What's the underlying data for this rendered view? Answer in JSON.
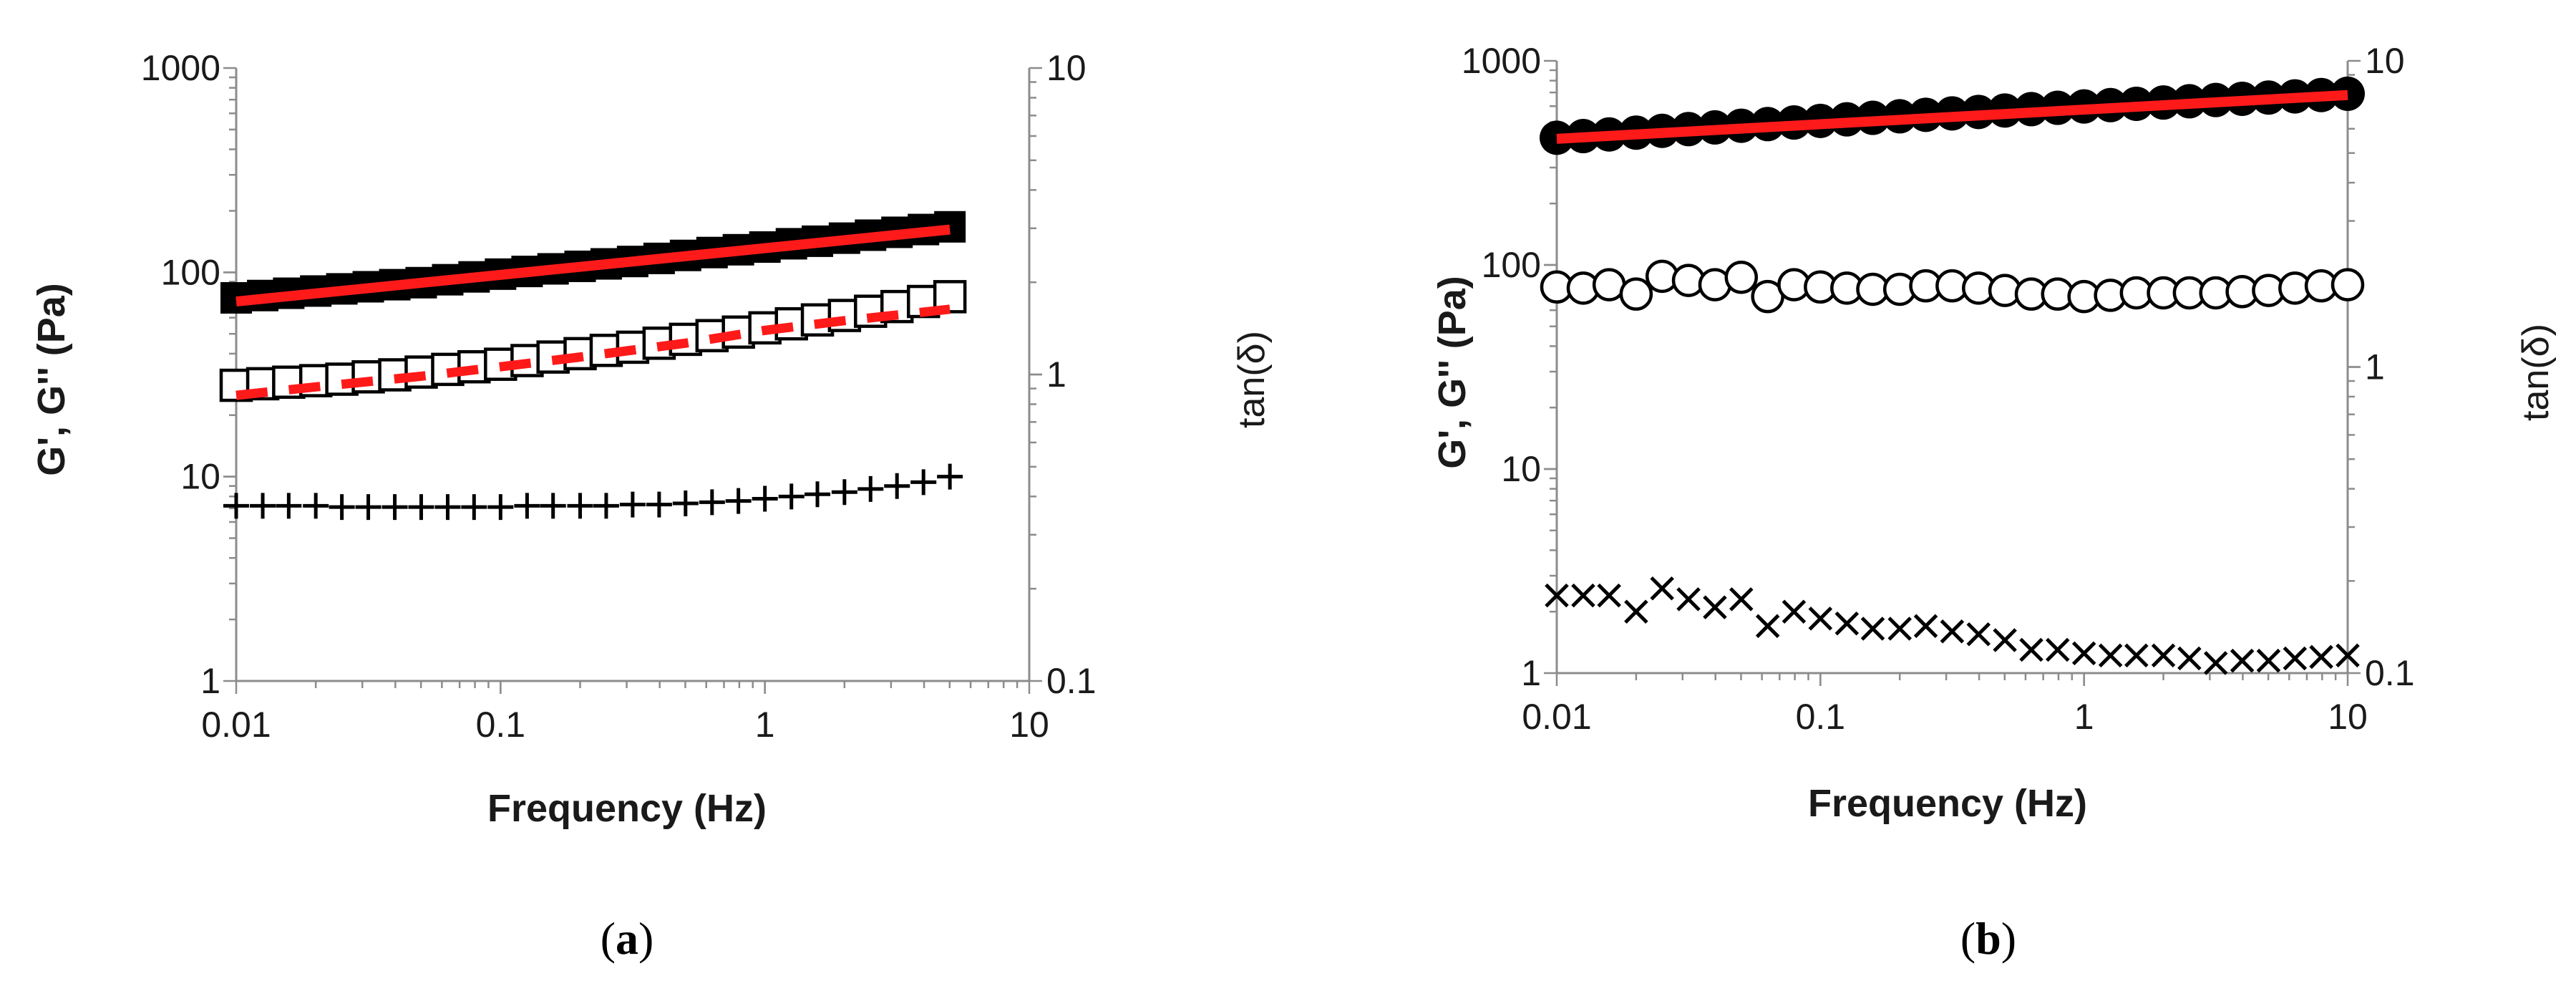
{
  "colors": {
    "background": "#ffffff",
    "axis": "#8c8c8c",
    "marker": "#000000",
    "fit": "#ff1a1a"
  },
  "chart_data": [
    {
      "type": "scatter",
      "panel": "(a)",
      "panel_label": {
        "open": "(",
        "letter": "a",
        "close": ")"
      },
      "xlabel": "Frequency (Hz)",
      "ylabel": "G', G'' (Pa)",
      "y2label": "tan(δ)",
      "xscale": "log",
      "yscale": "log",
      "y2scale": "log",
      "xlim": [
        0.01,
        10
      ],
      "ylim": [
        1,
        1000
      ],
      "y2lim": [
        0.1,
        10
      ],
      "x_ticks": [
        {
          "value": 0.01,
          "label": "0.01"
        },
        {
          "value": 0.1,
          "label": "0.1"
        },
        {
          "value": 1,
          "label": "1"
        },
        {
          "value": 10,
          "label": "10"
        }
      ],
      "y_ticks": [
        {
          "value": 1,
          "label": "1"
        },
        {
          "value": 10,
          "label": "10"
        },
        {
          "value": 100,
          "label": "100"
        },
        {
          "value": 1000,
          "label": "1000"
        }
      ],
      "y2_ticks": [
        {
          "value": 0.1,
          "label": "0.1"
        },
        {
          "value": 1,
          "label": "1"
        },
        {
          "value": 10,
          "label": "10"
        }
      ],
      "series": [
        {
          "name": "G'",
          "marker": "filled-square",
          "axis": "left",
          "x": [
            0.01,
            0.0126,
            0.0158,
            0.02,
            0.0251,
            0.0316,
            0.0398,
            0.0501,
            0.0631,
            0.0794,
            0.1,
            0.126,
            0.158,
            0.2,
            0.251,
            0.316,
            0.398,
            0.501,
            0.631,
            0.794,
            1,
            1.26,
            1.58,
            2,
            2.51,
            3.16,
            3.98,
            5.01
          ],
          "y": [
            75,
            77,
            79,
            81,
            83,
            85,
            87,
            89,
            92,
            95,
            98,
            101,
            104,
            107,
            110,
            113,
            117,
            121,
            125,
            129,
            133,
            138,
            142,
            147,
            152,
            157,
            162,
            167
          ]
        },
        {
          "name": "G' fit",
          "style": "solid-line",
          "axis": "left",
          "x": [
            0.01,
            5.01
          ],
          "y": [
            72,
            162
          ]
        },
        {
          "name": "G''",
          "marker": "open-square",
          "axis": "left",
          "x": [
            0.01,
            0.0126,
            0.0158,
            0.02,
            0.0251,
            0.0316,
            0.0398,
            0.0501,
            0.0631,
            0.0794,
            0.1,
            0.126,
            0.158,
            0.2,
            0.251,
            0.316,
            0.398,
            0.501,
            0.631,
            0.794,
            1,
            1.26,
            1.58,
            2,
            2.51,
            3.16,
            3.98,
            5.01
          ],
          "y": [
            28,
            28.5,
            29,
            29.5,
            30,
            30.8,
            31.5,
            32.5,
            33.5,
            34.5,
            35.5,
            37,
            38.5,
            40,
            41.5,
            43,
            45,
            47,
            49,
            51,
            53.5,
            56,
            58.5,
            61.5,
            64.5,
            68,
            72,
            76
          ]
        },
        {
          "name": "G'' fit",
          "style": "dashed-line",
          "axis": "left",
          "x": [
            0.01,
            0.02,
            0.05,
            0.1,
            0.2,
            0.5,
            1,
            2,
            5.01
          ],
          "y": [
            25,
            27.5,
            31,
            34.5,
            38.5,
            45,
            52,
            58,
            66
          ]
        },
        {
          "name": "tan(δ)",
          "marker": "plus",
          "axis": "left",
          "x": [
            0.01,
            0.0126,
            0.0158,
            0.02,
            0.0251,
            0.0316,
            0.0398,
            0.0501,
            0.0631,
            0.0794,
            0.1,
            0.126,
            0.158,
            0.2,
            0.251,
            0.316,
            0.398,
            0.501,
            0.631,
            0.794,
            1,
            1.26,
            1.58,
            2,
            2.51,
            3.16,
            3.98,
            5.01
          ],
          "y": [
            7.2,
            7.2,
            7.2,
            7.2,
            7.1,
            7.1,
            7.1,
            7.1,
            7.1,
            7.1,
            7.1,
            7.2,
            7.2,
            7.2,
            7.2,
            7.3,
            7.3,
            7.4,
            7.5,
            7.6,
            7.8,
            8.0,
            8.2,
            8.4,
            8.7,
            9.0,
            9.4,
            10.0
          ]
        }
      ]
    },
    {
      "type": "scatter",
      "panel": "(b)",
      "panel_label": {
        "open": "(",
        "letter": "b",
        "close": ")"
      },
      "xlabel": "Frequency (Hz)",
      "ylabel": "G', G'' (Pa)",
      "y2label": "tan(δ)",
      "xscale": "log",
      "yscale": "log",
      "y2scale": "log",
      "xlim": [
        0.01,
        10
      ],
      "ylim": [
        1,
        1000
      ],
      "y2lim": [
        0.1,
        10
      ],
      "x_ticks": [
        {
          "value": 0.01,
          "label": "0.01"
        },
        {
          "value": 0.1,
          "label": "0.1"
        },
        {
          "value": 1,
          "label": "1"
        },
        {
          "value": 10,
          "label": "10"
        }
      ],
      "y_ticks": [
        {
          "value": 1,
          "label": "1"
        },
        {
          "value": 10,
          "label": "10"
        },
        {
          "value": 100,
          "label": "100"
        },
        {
          "value": 1000,
          "label": "1000"
        }
      ],
      "y2_ticks": [
        {
          "value": 0.1,
          "label": "0.1"
        },
        {
          "value": 1,
          "label": "1"
        },
        {
          "value": 10,
          "label": "10"
        }
      ],
      "series": [
        {
          "name": "G'",
          "marker": "filled-circle",
          "axis": "left",
          "x": [
            0.01,
            0.0126,
            0.0158,
            0.02,
            0.0251,
            0.0316,
            0.0398,
            0.0501,
            0.0631,
            0.0794,
            0.1,
            0.126,
            0.158,
            0.2,
            0.251,
            0.316,
            0.398,
            0.501,
            0.631,
            0.794,
            1,
            1.26,
            1.58,
            2,
            2.51,
            3.16,
            3.98,
            5.01,
            6.31,
            7.94,
            10
          ],
          "y": [
            420,
            428,
            436,
            445,
            454,
            463,
            472,
            481,
            490,
            499,
            508,
            517,
            526,
            535,
            544,
            553,
            562,
            571,
            580,
            589,
            598,
            607,
            616,
            625,
            634,
            643,
            652,
            661,
            670,
            680,
            690
          ]
        },
        {
          "name": "G' fit",
          "style": "solid-line",
          "axis": "left",
          "x": [
            0.01,
            10
          ],
          "y": [
            415,
            680
          ]
        },
        {
          "name": "G''",
          "marker": "open-circle",
          "axis": "left",
          "x": [
            0.01,
            0.0126,
            0.0158,
            0.02,
            0.0251,
            0.0316,
            0.0398,
            0.0501,
            0.0631,
            0.0794,
            0.1,
            0.126,
            0.158,
            0.2,
            0.251,
            0.316,
            0.398,
            0.501,
            0.631,
            0.794,
            1,
            1.26,
            1.58,
            2,
            2.51,
            3.16,
            3.98,
            5.01,
            6.31,
            7.94,
            10
          ],
          "y": [
            78,
            77,
            80,
            72,
            88,
            84,
            80,
            87,
            70,
            80,
            78,
            77,
            76,
            76,
            79,
            79,
            77,
            75,
            72,
            72,
            70,
            71,
            73,
            73,
            73,
            73,
            74,
            75,
            77,
            79,
            80
          ]
        },
        {
          "name": "tan(δ)",
          "marker": "cross",
          "axis": "left",
          "x": [
            0.01,
            0.0126,
            0.0158,
            0.02,
            0.0251,
            0.0316,
            0.0398,
            0.0501,
            0.0631,
            0.0794,
            0.1,
            0.126,
            0.158,
            0.2,
            0.251,
            0.316,
            0.398,
            0.501,
            0.631,
            0.794,
            1,
            1.26,
            1.58,
            2,
            2.51,
            3.16,
            3.98,
            5.01,
            6.31,
            7.94,
            10
          ],
          "y": [
            2.4,
            2.4,
            2.4,
            2.0,
            2.6,
            2.3,
            2.1,
            2.3,
            1.7,
            2.0,
            1.85,
            1.75,
            1.65,
            1.65,
            1.7,
            1.6,
            1.55,
            1.45,
            1.3,
            1.3,
            1.25,
            1.22,
            1.22,
            1.22,
            1.18,
            1.12,
            1.15,
            1.15,
            1.18,
            1.2,
            1.22
          ]
        }
      ]
    }
  ]
}
